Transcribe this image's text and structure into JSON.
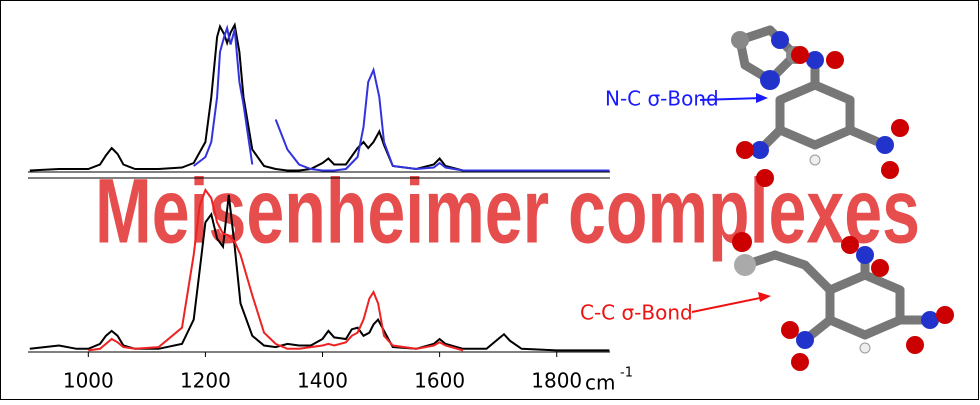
{
  "title": "Meisenheimer complexes",
  "chart_data": [
    {
      "type": "line",
      "x": [
        900,
        950,
        1000,
        1020,
        1030,
        1040,
        1050,
        1060,
        1080,
        1120,
        1160,
        1180,
        1200,
        1210,
        1220,
        1225,
        1232,
        1237,
        1243,
        1250,
        1258,
        1265,
        1280,
        1300,
        1320,
        1340,
        1360,
        1380,
        1400,
        1410,
        1420,
        1440,
        1460,
        1470,
        1478,
        1487,
        1497,
        1505,
        1520,
        1560,
        1590,
        1600,
        1610,
        1640,
        1700,
        1800,
        1890
      ],
      "xlim": [
        897,
        1891
      ],
      "ylim": [
        0,
        1
      ],
      "series": [
        {
          "color": "#000000",
          "values": [
            0.01,
            0.02,
            0.02,
            0.05,
            0.11,
            0.16,
            0.12,
            0.05,
            0.02,
            0.02,
            0.03,
            0.06,
            0.2,
            0.5,
            0.9,
            0.97,
            0.92,
            0.86,
            0.93,
            0.98,
            0.8,
            0.5,
            0.15,
            0.04,
            0.02,
            0.01,
            0.01,
            0.02,
            0.06,
            0.09,
            0.05,
            0.05,
            0.16,
            0.2,
            0.16,
            0.2,
            0.27,
            0.18,
            0.04,
            0.02,
            0.05,
            0.09,
            0.04,
            0.01,
            0.01,
            0.01,
            0.01
          ]
        },
        {
          "color": "#3333dd",
          "values": [
            null,
            null,
            null,
            null,
            null,
            null,
            null,
            null,
            null,
            null,
            null,
            0.04,
            0.1,
            0.2,
            0.5,
            0.8,
            0.9,
            0.96,
            0.85,
            0.95,
            0.6,
            0.45,
            0.05,
            null,
            0.35,
            0.15,
            0.05,
            0.02,
            0.01,
            0.01,
            0.01,
            0.02,
            0.1,
            0.3,
            0.6,
            0.68,
            0.5,
            0.2,
            0.04,
            0.02,
            0.03,
            0.06,
            0.03,
            0.01,
            0.01,
            0.01,
            0.01
          ]
        }
      ]
    },
    {
      "type": "line",
      "x": [
        900,
        950,
        980,
        1000,
        1020,
        1030,
        1040,
        1050,
        1060,
        1080,
        1120,
        1160,
        1180,
        1190,
        1200,
        1210,
        1220,
        1230,
        1240,
        1250,
        1260,
        1280,
        1300,
        1320,
        1340,
        1360,
        1380,
        1400,
        1410,
        1420,
        1440,
        1450,
        1460,
        1470,
        1480,
        1487,
        1495,
        1505,
        1520,
        1560,
        1590,
        1600,
        1610,
        1640,
        1680,
        1700,
        1710,
        1720,
        1740,
        1800,
        1890
      ],
      "xlim": [
        897,
        1891
      ],
      "ylim": [
        0,
        1
      ],
      "xticks": [
        1000,
        1200,
        1400,
        1600,
        1800
      ],
      "x_label": "cm",
      "x_label_exponent": "-1",
      "series": [
        {
          "color": "#000000",
          "values": [
            0.02,
            0.04,
            0.02,
            0.02,
            0.05,
            0.1,
            0.13,
            0.1,
            0.04,
            0.02,
            0.02,
            0.05,
            0.2,
            0.5,
            0.8,
            0.85,
            0.7,
            0.65,
            0.97,
            0.65,
            0.3,
            0.1,
            0.04,
            0.03,
            0.05,
            0.04,
            0.04,
            0.08,
            0.13,
            0.09,
            0.08,
            0.14,
            0.15,
            0.1,
            0.12,
            0.17,
            0.2,
            0.13,
            0.03,
            0.02,
            0.05,
            0.08,
            0.05,
            0.02,
            0.02,
            0.08,
            0.11,
            0.07,
            0.02,
            0.01,
            0.01
          ]
        },
        {
          "color": "#ee2222",
          "values": [
            null,
            null,
            null,
            0.01,
            0.02,
            0.05,
            0.08,
            0.06,
            0.03,
            0.02,
            0.03,
            0.15,
            0.6,
            0.9,
            1.0,
            0.95,
            0.8,
            0.73,
            0.72,
            0.68,
            0.6,
            0.35,
            0.12,
            0.05,
            0.02,
            0.02,
            0.03,
            0.04,
            0.05,
            0.04,
            0.06,
            0.1,
            0.12,
            0.2,
            0.33,
            0.37,
            0.3,
            0.1,
            0.04,
            0.02,
            0.04,
            0.06,
            0.04,
            0.01,
            null,
            null,
            null,
            null,
            null,
            null,
            null
          ]
        }
      ]
    }
  ],
  "annotations": [
    {
      "text": "N-C  σ-Bond",
      "color": "#1a1aff"
    },
    {
      "text": "C-C  σ-Bond",
      "color": "#ee1111"
    }
  ]
}
